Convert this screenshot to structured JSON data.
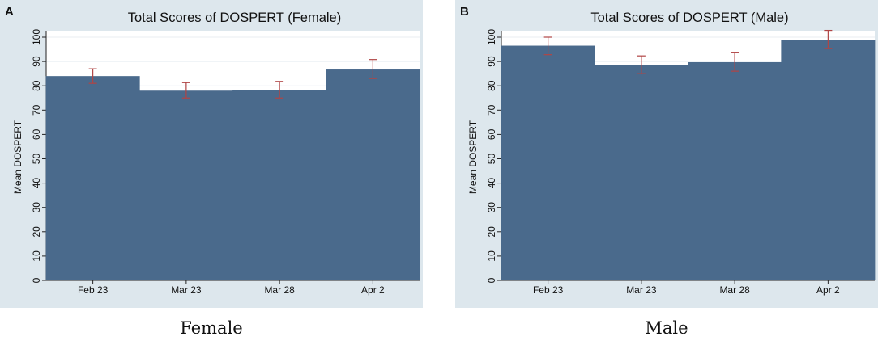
{
  "chart_data": [
    {
      "type": "bar",
      "panel_label": "A",
      "title": "Total Scores of DOSPERT (Female)",
      "xlabel": "",
      "ylabel": "Mean DOSPERT",
      "categories": [
        "Feb 23",
        "Mar 23",
        "Mar 28",
        "Apr 2"
      ],
      "values": [
        84,
        78,
        78.3,
        86.7
      ],
      "error_low": [
        81,
        75,
        75,
        83
      ],
      "error_high": [
        87,
        81.3,
        81.8,
        90.8
      ],
      "ylim": [
        0,
        100
      ],
      "yticks": [
        0,
        10,
        20,
        30,
        40,
        50,
        60,
        70,
        80,
        90,
        100
      ],
      "grid": true,
      "caption": "Female"
    },
    {
      "type": "bar",
      "panel_label": "B",
      "title": "Total Scores of DOSPERT (Male)",
      "xlabel": "",
      "ylabel": "Mean DOSPERT",
      "categories": [
        "Feb 23",
        "Mar 23",
        "Mar 28",
        "Apr 2"
      ],
      "values": [
        96.5,
        88.5,
        89.7,
        99
      ],
      "error_low": [
        92.8,
        85,
        86,
        95.3
      ],
      "error_high": [
        100,
        92.3,
        93.8,
        102.8
      ],
      "ylim": [
        0,
        100
      ],
      "yticks": [
        0,
        10,
        20,
        30,
        40,
        50,
        60,
        70,
        80,
        90,
        100
      ],
      "grid": true,
      "caption": "Male"
    }
  ],
  "colors": {
    "outer_background": "#dde7ed",
    "plot_background": "#ffffff",
    "bar": "#4a6a8c",
    "error_bar": "#b04545",
    "grid": "#e8eef2",
    "text": "#111111"
  }
}
